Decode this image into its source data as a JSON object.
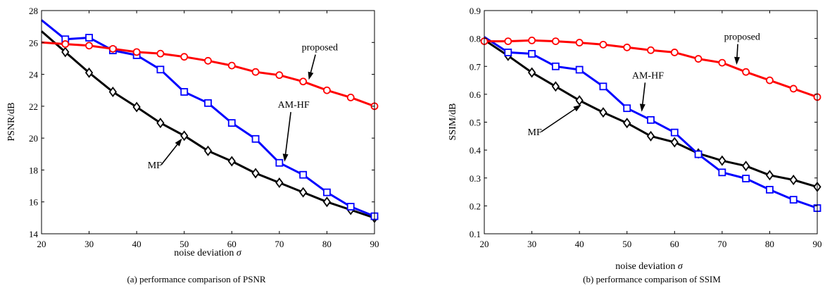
{
  "chart_data": [
    {
      "type": "line",
      "caption": "(a) performance comparison of PSNR",
      "xlabel": "noise deviation",
      "xlabel_symbol": "σ",
      "ylabel": "PSNR/dB",
      "xlim": [
        20,
        90
      ],
      "ylim": [
        14,
        28
      ],
      "xticks": [
        "20",
        "30",
        "40",
        "50",
        "60",
        "70",
        "80",
        "90"
      ],
      "yticks": [
        "14",
        "16",
        "18",
        "20",
        "22",
        "24",
        "26",
        "28"
      ],
      "grid": false,
      "series": [
        {
          "name": "proposed",
          "color": "#ff0000",
          "marker": "circle",
          "line_x": [
            20,
            25,
            30,
            35,
            40,
            45,
            50,
            55,
            60,
            65,
            70,
            75,
            80,
            85,
            90
          ],
          "line_y": [
            26.0,
            25.9,
            25.8,
            25.6,
            25.4,
            25.3,
            25.1,
            24.85,
            24.55,
            24.15,
            23.95,
            23.55,
            23.0,
            22.55,
            22.0
          ],
          "x": [
            25,
            30,
            35,
            40,
            45,
            50,
            55,
            60,
            65,
            70,
            75,
            80,
            85,
            90
          ],
          "y": [
            25.9,
            25.8,
            25.6,
            25.4,
            25.3,
            25.1,
            24.85,
            24.55,
            24.15,
            23.95,
            23.55,
            23.0,
            22.55,
            22.0
          ]
        },
        {
          "name": "AM-HF",
          "color": "#0000ff",
          "marker": "square",
          "line_x": [
            20,
            25,
            30,
            35,
            40,
            45,
            50,
            55,
            60,
            65,
            70,
            75,
            80,
            85,
            90
          ],
          "line_y": [
            27.4,
            26.2,
            26.3,
            25.5,
            25.2,
            24.3,
            22.9,
            22.2,
            20.95,
            19.95,
            18.45,
            17.7,
            16.6,
            15.7,
            15.1
          ],
          "x": [
            25,
            30,
            35,
            40,
            45,
            50,
            55,
            60,
            65,
            70,
            75,
            80,
            85,
            90
          ],
          "y": [
            26.2,
            26.3,
            25.5,
            25.2,
            24.3,
            22.9,
            22.2,
            20.95,
            19.95,
            18.45,
            17.7,
            16.6,
            15.7,
            15.1
          ]
        },
        {
          "name": "MF",
          "color": "#000000",
          "marker": "diamond",
          "line_x": [
            20,
            25,
            30,
            35,
            40,
            45,
            50,
            55,
            60,
            65,
            70,
            75,
            80,
            85,
            90
          ],
          "line_y": [
            26.7,
            25.4,
            24.1,
            22.9,
            21.95,
            20.95,
            20.15,
            19.2,
            18.55,
            17.8,
            17.2,
            16.6,
            16.0,
            15.5,
            15.0
          ],
          "x": [
            25,
            30,
            35,
            40,
            45,
            50,
            55,
            60,
            65,
            70,
            75,
            80,
            85,
            90
          ],
          "y": [
            25.4,
            24.1,
            22.9,
            21.95,
            20.95,
            20.15,
            19.2,
            18.55,
            17.8,
            17.2,
            16.6,
            16.0,
            15.5,
            15.0
          ]
        }
      ],
      "annotations": [
        {
          "text": "proposed",
          "series": "proposed",
          "at_x": 76,
          "label_x": 78.5,
          "label_y": 25.5
        },
        {
          "text": "AM-HF",
          "series": "AM-HF",
          "at_x": 71,
          "label_x": 73.0,
          "label_y": 21.9
        },
        {
          "text": "MF",
          "series": "MF",
          "at_x": 50,
          "label_x": 43.8,
          "label_y": 18.1
        }
      ]
    },
    {
      "type": "line",
      "caption": "(b) performance comparison of SSIM",
      "xlabel": "noise deviation",
      "xlabel_symbol": "σ",
      "ylabel": "SSIM/dB",
      "xlim": [
        20,
        90
      ],
      "ylim": [
        0.1,
        0.9
      ],
      "xticks": [
        "20",
        "30",
        "40",
        "50",
        "60",
        "70",
        "80",
        "90"
      ],
      "yticks": [
        "0.1",
        "0.2",
        "0.3",
        "0.4",
        "0.5",
        "0.6",
        "0.7",
        "0.8",
        "0.9"
      ],
      "grid": false,
      "series": [
        {
          "name": "proposed",
          "color": "#ff0000",
          "marker": "circle",
          "line_x": [
            20,
            25,
            30,
            35,
            40,
            45,
            50,
            55,
            60,
            65,
            70,
            75,
            80,
            85,
            90
          ],
          "line_y": [
            0.79,
            0.79,
            0.793,
            0.79,
            0.785,
            0.778,
            0.768,
            0.758,
            0.75,
            0.727,
            0.713,
            0.68,
            0.65,
            0.62,
            0.59
          ],
          "x": [
            20,
            25,
            30,
            35,
            40,
            45,
            50,
            55,
            60,
            65,
            70,
            75,
            80,
            85,
            90
          ],
          "y": [
            0.79,
            0.79,
            0.793,
            0.79,
            0.785,
            0.778,
            0.768,
            0.758,
            0.75,
            0.727,
            0.713,
            0.68,
            0.65,
            0.62,
            0.59
          ]
        },
        {
          "name": "AM-HF",
          "color": "#0000ff",
          "marker": "square",
          "line_x": [
            20,
            25,
            30,
            35,
            40,
            45,
            50,
            55,
            60,
            65,
            70,
            75,
            80,
            85,
            90
          ],
          "line_y": [
            0.805,
            0.75,
            0.745,
            0.7,
            0.688,
            0.628,
            0.55,
            0.508,
            0.463,
            0.385,
            0.32,
            0.298,
            0.258,
            0.222,
            0.192
          ],
          "x": [
            25,
            30,
            35,
            40,
            45,
            50,
            55,
            60,
            65,
            70,
            75,
            80,
            85,
            90
          ],
          "y": [
            0.75,
            0.745,
            0.7,
            0.688,
            0.628,
            0.55,
            0.508,
            0.463,
            0.385,
            0.32,
            0.298,
            0.258,
            0.222,
            0.192
          ]
        },
        {
          "name": "MF",
          "color": "#000000",
          "marker": "diamond",
          "line_x": [
            20,
            25,
            30,
            35,
            40,
            45,
            50,
            55,
            60,
            65,
            70,
            75,
            80,
            85,
            90
          ],
          "line_y": [
            0.795,
            0.738,
            0.678,
            0.628,
            0.578,
            0.535,
            0.497,
            0.45,
            0.428,
            0.388,
            0.362,
            0.343,
            0.31,
            0.293,
            0.268
          ],
          "x": [
            25,
            30,
            35,
            40,
            45,
            50,
            55,
            60,
            65,
            70,
            75,
            80,
            85,
            90
          ],
          "y": [
            0.738,
            0.678,
            0.628,
            0.578,
            0.535,
            0.497,
            0.45,
            0.428,
            0.388,
            0.362,
            0.343,
            0.31,
            0.293,
            0.268
          ]
        }
      ],
      "annotations": [
        {
          "text": "proposed",
          "series": "proposed",
          "at_x": 73,
          "label_x": 74.2,
          "label_y": 0.795
        },
        {
          "text": "AM-HF",
          "series": "AM-HF",
          "at_x": 53,
          "label_x": 54.4,
          "label_y": 0.657
        },
        {
          "text": "MF",
          "series": "MF",
          "at_x": 41,
          "label_x": 30.6,
          "label_y": 0.453
        }
      ]
    }
  ]
}
